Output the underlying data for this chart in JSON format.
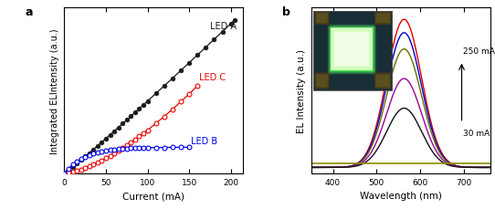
{
  "panel_a": {
    "title_label": "a",
    "xlabel": "Current (mA)",
    "ylabel": "Integrated ELIntensity (a.u.)",
    "xlim": [
      0,
      215
    ],
    "ylim": [
      0,
      1.08
    ],
    "led_a": {
      "color": "#1a1a1a",
      "label": "LED A",
      "marker_filled": true
    },
    "led_b": {
      "color": "#0000ee",
      "label": "LED B",
      "marker_filled": false
    },
    "led_c": {
      "color": "#ee0000",
      "label": "LED C",
      "marker_filled": false
    }
  },
  "panel_b": {
    "title_label": "b",
    "xlabel": "Wavelength (nm)",
    "ylabel": "EL Intensity (a.u.)",
    "xlim": [
      350,
      760
    ],
    "ylim": [
      -0.04,
      1.08
    ],
    "peak_wl": 563,
    "sigma": 40,
    "arrow_label_top": "250 mA",
    "arrow_label_bottom": "30 mA",
    "curves": [
      {
        "color": "#dd0000",
        "amplitude": 1.0
      },
      {
        "color": "#0000cc",
        "amplitude": 0.91
      },
      {
        "color": "#6b6b00",
        "amplitude": 0.8
      },
      {
        "color": "#990099",
        "amplitude": 0.6
      },
      {
        "color": "#111111",
        "amplitude": 0.4
      }
    ],
    "baseline_color": "#8b8b00",
    "baseline_y": 0.03
  }
}
